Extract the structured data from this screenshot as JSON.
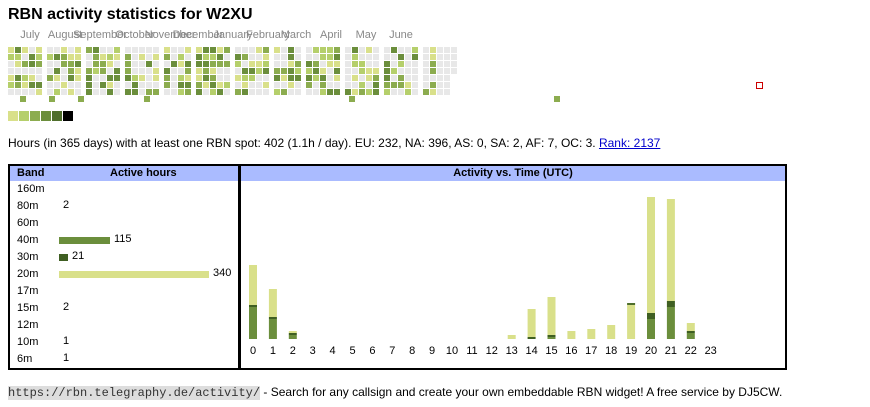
{
  "title": "RBN activity statistics for W2XU",
  "months": [
    "July",
    "August",
    "September",
    "October",
    "November",
    "December",
    "January",
    "February",
    "March",
    "April",
    "May",
    "June"
  ],
  "colors": {
    "empty": "#e8e8e8",
    "levels": [
      "#d9e08a",
      "#b5cf6b",
      "#8cac4f",
      "#6b8e3c",
      "#4f6e2c",
      "#000000"
    ],
    "band_20m": "#d9e08a",
    "band_40m": "#6b8e3c",
    "band_30m": "#3f5f22",
    "today_outline": "#cc0000",
    "header_bg": "#aabbff"
  },
  "summary": {
    "text": "Hours (in 365 days) with at least one RBN spot: 402 (1.1h / day). EU: 232, NA: 396, AS: 0, SA: 2, AF: 7, OC: 3.",
    "rank_link": "Rank: 2137"
  },
  "band_table": {
    "header_band": "Band",
    "header_hours": "Active hours",
    "max": 340,
    "rows": [
      {
        "band": "160m",
        "hours": null,
        "value_text": ""
      },
      {
        "band": "80m",
        "hours": 2,
        "value_text": "2"
      },
      {
        "band": "60m",
        "hours": null,
        "value_text": ""
      },
      {
        "band": "40m",
        "hours": 115,
        "value_text": "115"
      },
      {
        "band": "30m",
        "hours": 21,
        "value_text": "21"
      },
      {
        "band": "20m",
        "hours": 340,
        "value_text": "340"
      },
      {
        "band": "17m",
        "hours": null,
        "value_text": ""
      },
      {
        "band": "15m",
        "hours": 2,
        "value_text": "2"
      },
      {
        "band": "12m",
        "hours": null,
        "value_text": ""
      },
      {
        "band": "10m",
        "hours": 1,
        "value_text": "1"
      },
      {
        "band": "6m",
        "hours": 1,
        "value_text": "1"
      }
    ]
  },
  "chart_data": {
    "type": "bar",
    "title": "Activity vs. Time (UTC)",
    "categories": [
      "0",
      "1",
      "2",
      "3",
      "4",
      "5",
      "6",
      "7",
      "8",
      "9",
      "10",
      "11",
      "12",
      "13",
      "14",
      "15",
      "16",
      "17",
      "18",
      "19",
      "20",
      "21",
      "22",
      "23"
    ],
    "series": [
      {
        "band": "40m",
        "values": [
          16,
          10,
          2,
          0,
          0,
          0,
          0,
          0,
          0,
          0,
          0,
          0,
          0,
          0,
          0,
          1,
          0,
          0,
          0,
          0,
          10,
          16,
          3,
          0
        ]
      },
      {
        "band": "30m",
        "values": [
          1,
          1,
          1,
          0,
          0,
          0,
          0,
          0,
          0,
          0,
          0,
          0,
          0,
          0,
          1,
          1,
          0,
          0,
          0,
          0,
          3,
          3,
          1,
          0
        ]
      },
      {
        "band": "20m",
        "values": [
          20,
          14,
          1,
          0,
          0,
          0,
          0,
          0,
          0,
          0,
          0,
          0,
          0,
          2,
          14,
          19,
          4,
          5,
          7,
          17,
          58,
          51,
          4,
          0
        ]
      },
      {
        "band": "other",
        "values": [
          0,
          0,
          0,
          0,
          0,
          0,
          0,
          0,
          0,
          0,
          0,
          0,
          0,
          0,
          0,
          0,
          0,
          0,
          0,
          1,
          0,
          0,
          0,
          0
        ]
      }
    ],
    "ylim": [
      0,
      75
    ],
    "xlabel": "",
    "ylabel": ""
  },
  "footer": {
    "url": "https://rbn.telegraphy.de/activity/",
    "text": " - Search for any callsign and create your own embeddable RBN widget! A free service by DJ5CW."
  }
}
